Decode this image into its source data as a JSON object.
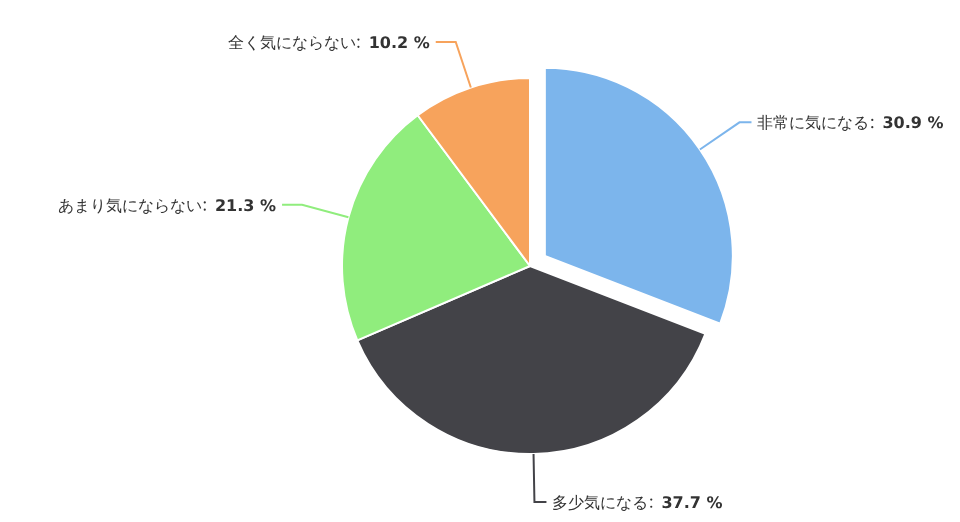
{
  "chart_data": {
    "type": "pie",
    "categories": [
      "非常に気になる",
      "多少気になる",
      "あまり気にならない",
      "全く気にならない"
    ],
    "values": [
      30.9,
      37.7,
      21.3,
      10.2
    ],
    "value_labels": [
      "30.9 %",
      "37.7 %",
      "21.3 %",
      "10.2 %"
    ],
    "colors": [
      "#7cb5ec",
      "#434348",
      "#90ed7d",
      "#f7a35c"
    ],
    "legend": false
  }
}
